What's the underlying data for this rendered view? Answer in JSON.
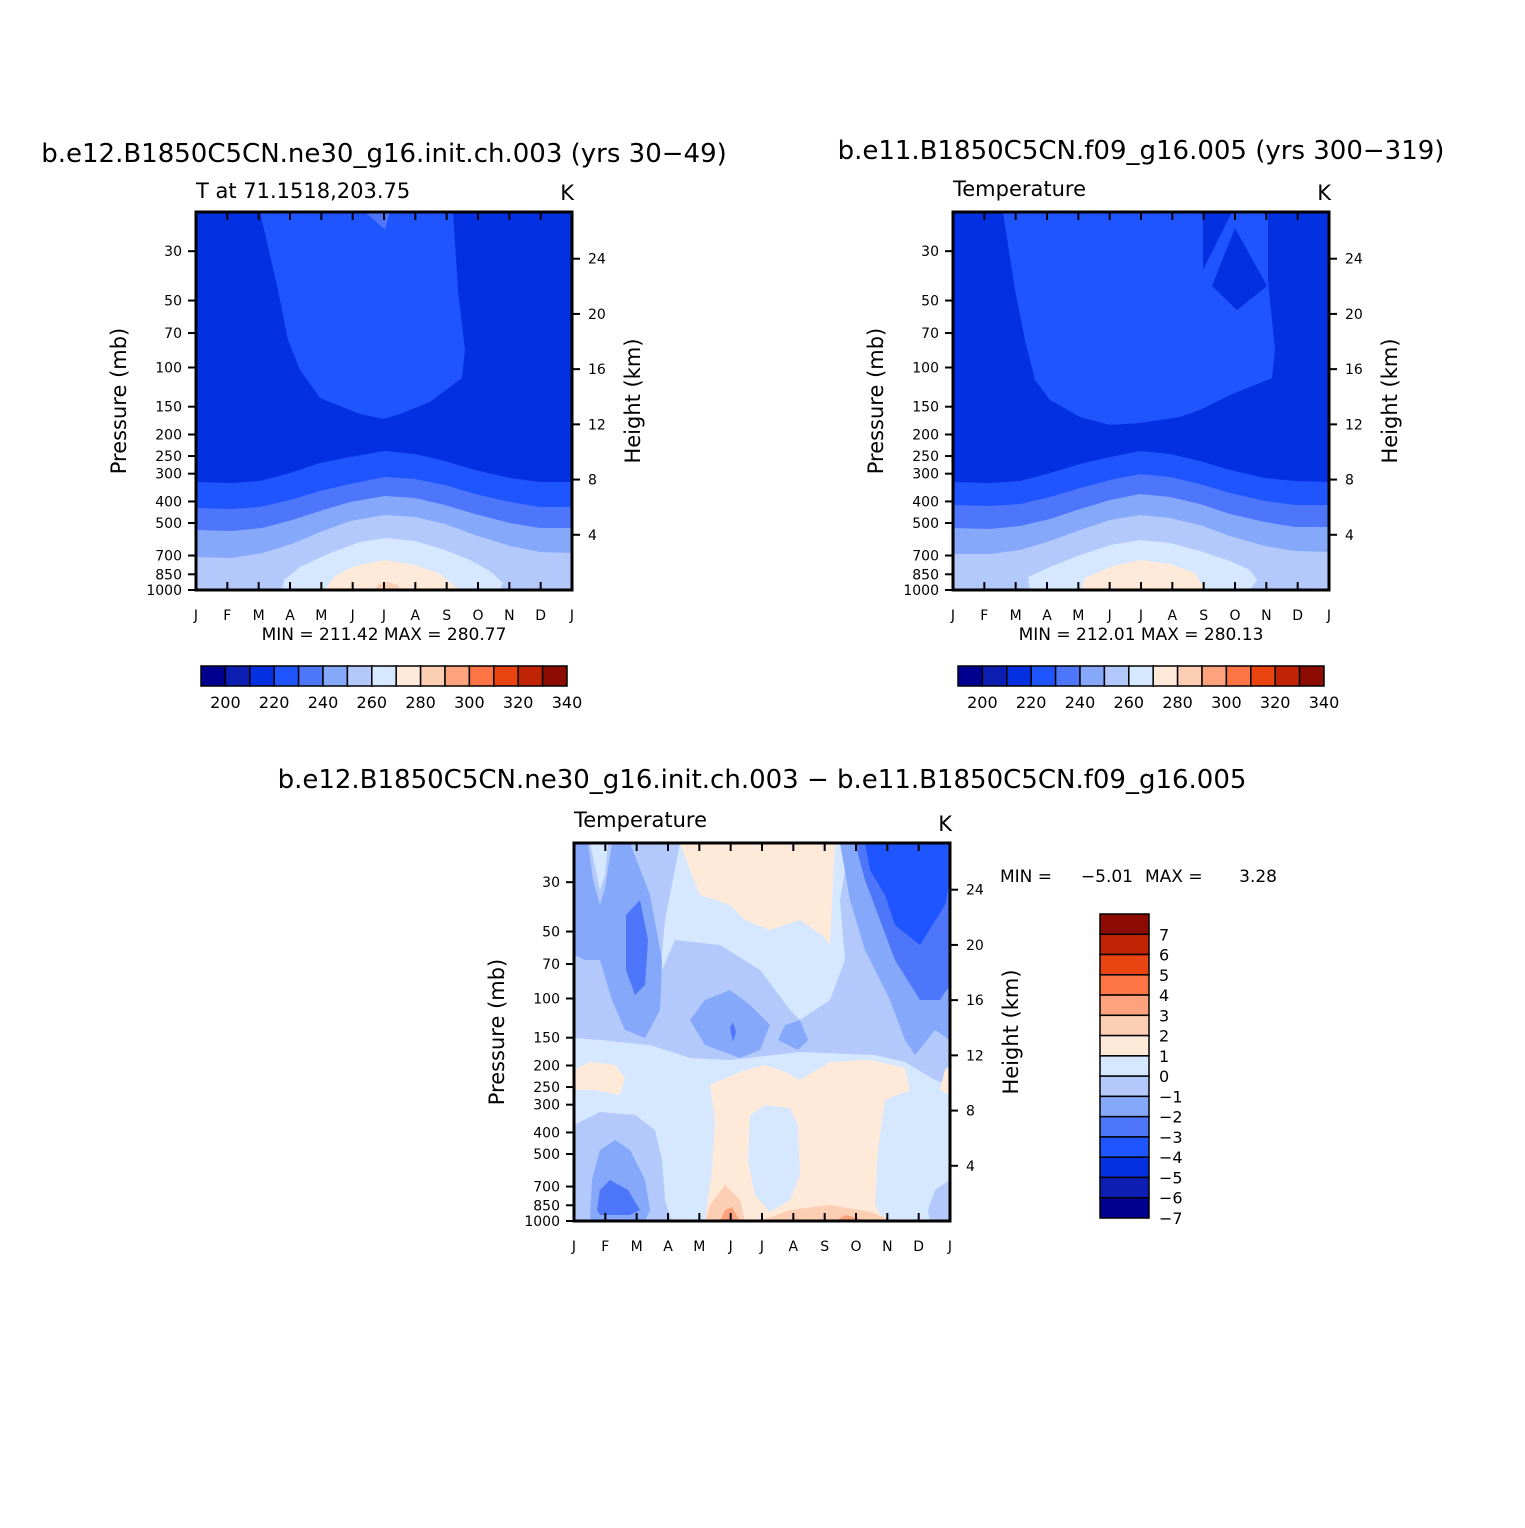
{
  "chart_data": [
    {
      "type": "heatmap",
      "title": "b.e12.B1850C5CN.ne30_g16.init.ch.003 (yrs 30−49)",
      "subtitle_left": "T at 71.1518,203.75",
      "subtitle_right": "K",
      "xlabel": "",
      "ylabel": "Pressure (mb)",
      "ylabel_right": "Height (km)",
      "x_ticks": [
        "J",
        "F",
        "M",
        "A",
        "M",
        "J",
        "J",
        "A",
        "S",
        "O",
        "N",
        "D",
        "J"
      ],
      "y_ticks": [
        "30",
        "50",
        "70",
        "100",
        "150",
        "200",
        "250",
        "300",
        "400",
        "500",
        "700",
        "850",
        "1000"
      ],
      "y_right_ticks": [
        "24",
        "20",
        "16",
        "12",
        "8",
        "4"
      ],
      "minmax_text": "MIN = 211.42 MAX = 280.77",
      "colorbar_labels": [
        "200",
        "220",
        "240",
        "260",
        "280",
        "300",
        "320",
        "340"
      ],
      "colorbar_colors": [
        "#000090",
        "#0c1fb2",
        "#0330e0",
        "#1e55ff",
        "#4d76fa",
        "#85a8fa",
        "#b3c9fc",
        "#d6e8ff",
        "#ffe9d9",
        "#fccfb4",
        "#fca37d",
        "#fd7544",
        "#ea4411",
        "#c02405",
        "#8c0c02"
      ]
    },
    {
      "type": "heatmap",
      "title": "b.e11.B1850C5CN.f09_g16.005 (yrs 300−319)",
      "subtitle_left": "Temperature",
      "subtitle_right": "K",
      "xlabel": "",
      "ylabel": "Pressure (mb)",
      "ylabel_right": "Height (km)",
      "x_ticks": [
        "J",
        "F",
        "M",
        "A",
        "M",
        "J",
        "J",
        "A",
        "S",
        "O",
        "N",
        "D",
        "J"
      ],
      "y_ticks": [
        "30",
        "50",
        "70",
        "100",
        "150",
        "200",
        "250",
        "300",
        "400",
        "500",
        "700",
        "850",
        "1000"
      ],
      "y_right_ticks": [
        "24",
        "20",
        "16",
        "12",
        "8",
        "4"
      ],
      "minmax_text": "MIN = 212.01 MAX = 280.13",
      "colorbar_labels": [
        "200",
        "220",
        "240",
        "260",
        "280",
        "300",
        "320",
        "340"
      ],
      "colorbar_colors": [
        "#000090",
        "#0c1fb2",
        "#0330e0",
        "#1e55ff",
        "#4d76fa",
        "#85a8fa",
        "#b3c9fc",
        "#d6e8ff",
        "#ffe9d9",
        "#fccfb4",
        "#fca37d",
        "#fd7544",
        "#ea4411",
        "#c02405",
        "#8c0c02"
      ]
    },
    {
      "type": "heatmap",
      "title": "b.e12.B1850C5CN.ne30_g16.init.ch.003 − b.e11.B1850C5CN.f09_g16.005",
      "subtitle_left": "Temperature",
      "subtitle_right": "K",
      "xlabel": "",
      "ylabel": "Pressure (mb)",
      "ylabel_right": "Height (km)",
      "x_ticks": [
        "J",
        "F",
        "M",
        "A",
        "M",
        "J",
        "J",
        "A",
        "S",
        "O",
        "N",
        "D",
        "J"
      ],
      "y_ticks": [
        "30",
        "50",
        "70",
        "100",
        "150",
        "200",
        "250",
        "300",
        "400",
        "500",
        "700",
        "850",
        "1000"
      ],
      "y_right_ticks": [
        "24",
        "20",
        "16",
        "12",
        "8",
        "4"
      ],
      "min_label": "MIN =",
      "min_value": "−5.01",
      "max_label": "MAX =",
      "max_value": "3.28",
      "colorbar_labels": [
        "7",
        "6",
        "5",
        "4",
        "3",
        "2",
        "1",
        "0",
        "−1",
        "−2",
        "−3",
        "−4",
        "−5",
        "−6",
        "−7"
      ],
      "colorbar_colors": [
        "#8c0c02",
        "#c02405",
        "#ea4411",
        "#fd7544",
        "#fca37d",
        "#fccfb4",
        "#ffe9d9",
        "#d6e8ff",
        "#b3c9fc",
        "#85a8fa",
        "#4d76fa",
        "#1e55ff",
        "#0330e0",
        "#0c1fb2",
        "#000090"
      ]
    }
  ]
}
